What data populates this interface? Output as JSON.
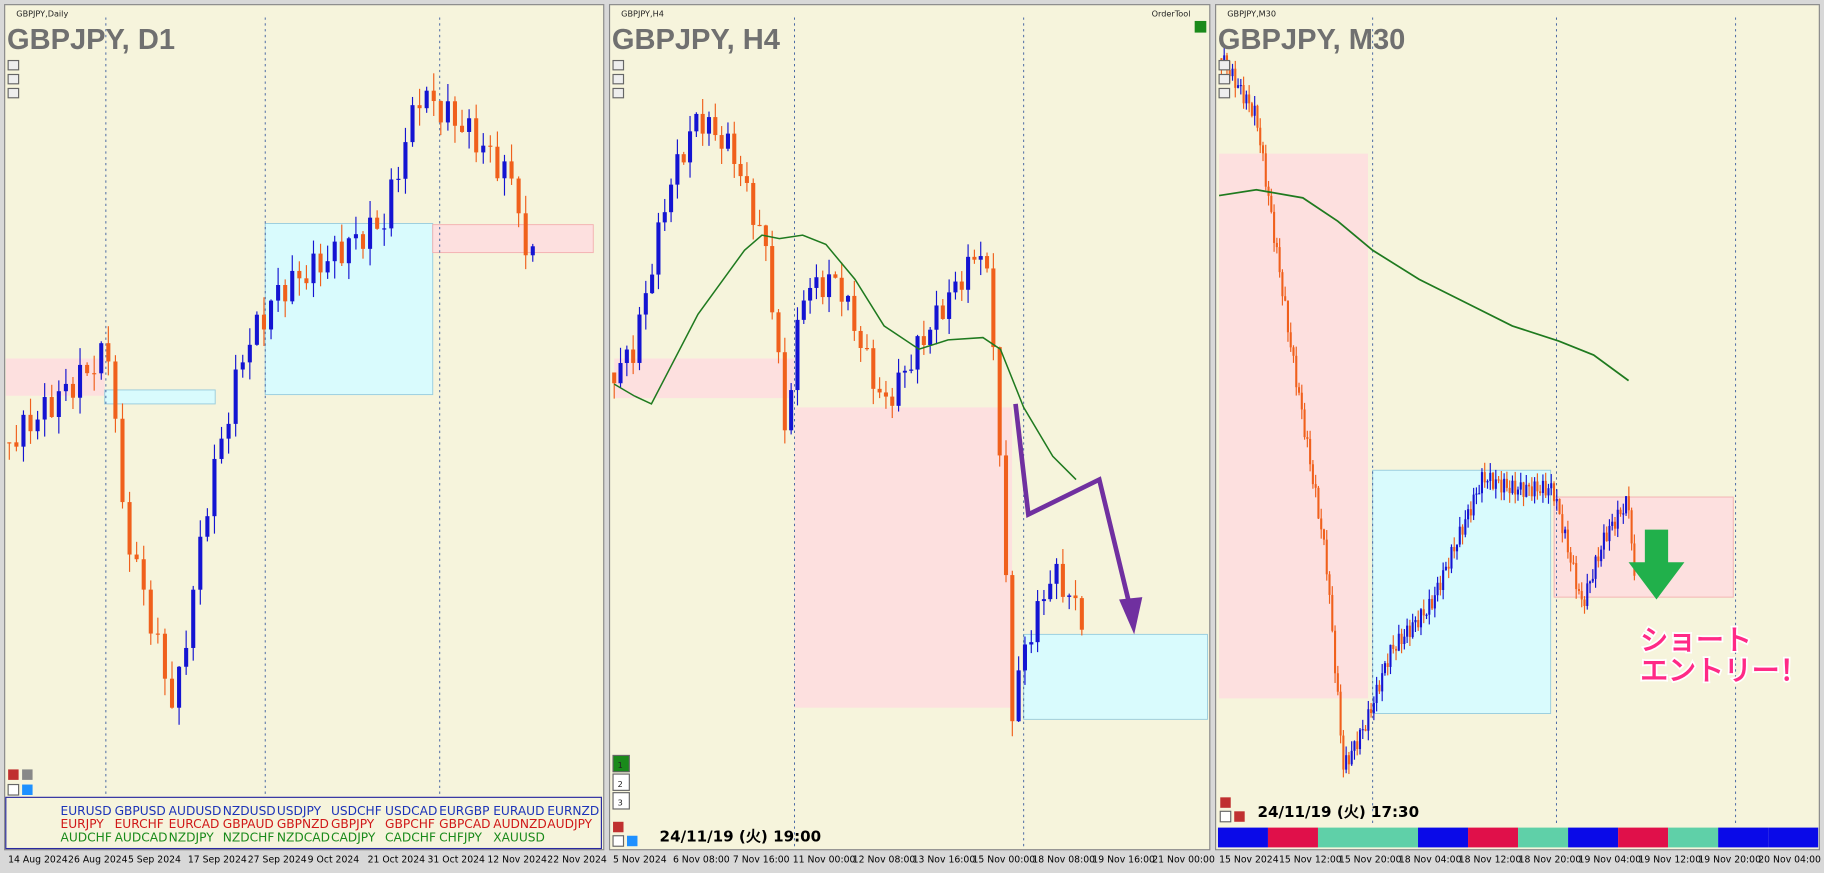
{
  "panels": [
    {
      "caption": "GBPJPY,Daily",
      "title": "GBPJPY, D1",
      "x_labels": [
        "14 Aug 2024",
        "26 Aug 2024",
        "5 Sep 2024",
        "17 Sep 2024",
        "27 Sep 2024",
        "9 Oct 2024",
        "21 Oct 2024",
        "31 Oct 2024",
        "12 Nov 2024",
        "22 Nov 2024"
      ]
    },
    {
      "caption": "GBPJPY,H4",
      "title": "GBPJPY, H4",
      "x_labels": [
        "5 Nov 2024",
        "6 Nov 08:00",
        "7 Nov 16:00",
        "11 Nov 00:00",
        "12 Nov 08:00",
        "13 Nov 16:00",
        "15 Nov 00:00",
        "18 Nov 08:00",
        "19 Nov 16:00",
        "21 Nov 00:00"
      ],
      "order_tool": "OrderTool",
      "timestamp": "24/11/19 (火) 19:00",
      "buttons": [
        "1",
        "2",
        "3"
      ]
    },
    {
      "caption": "GBPJPY,M30",
      "title": "GBPJPY, M30",
      "x_labels": [
        "15 Nov 2024",
        "15 Nov 12:00",
        "15 Nov 20:00",
        "18 Nov 04:00",
        "18 Nov 12:00",
        "18 Nov 20:00",
        "19 Nov 04:00",
        "19 Nov 12:00",
        "19 Nov 20:00",
        "20 Nov 04:00"
      ],
      "timestamp": "24/11/19 (火) 17:30",
      "annotation": [
        "ショート",
        "エントリー！"
      ]
    }
  ],
  "symbols": {
    "rows": [
      [
        "EURUSD",
        "GBPUSD",
        "AUDUSD",
        "NZDUSD",
        "USDJPY",
        "USDCHF",
        "USDCAD",
        "EURGBP",
        "EURAUD",
        "EURNZD"
      ],
      [
        "EURJPY",
        "EURCHF",
        "EURCAD",
        "GBPAUD",
        "GBPNZD",
        "GBPJPY",
        "GBPCHF",
        "GBPCAD",
        "AUDNZD",
        "AUDJPY"
      ],
      [
        "AUDCHF",
        "AUDCAD",
        "NZDJPY",
        "NZDCHF",
        "NZDCAD",
        "CADJPY",
        "CADCHF",
        "CHFJPY",
        "XAUUSD"
      ]
    ]
  }
}
